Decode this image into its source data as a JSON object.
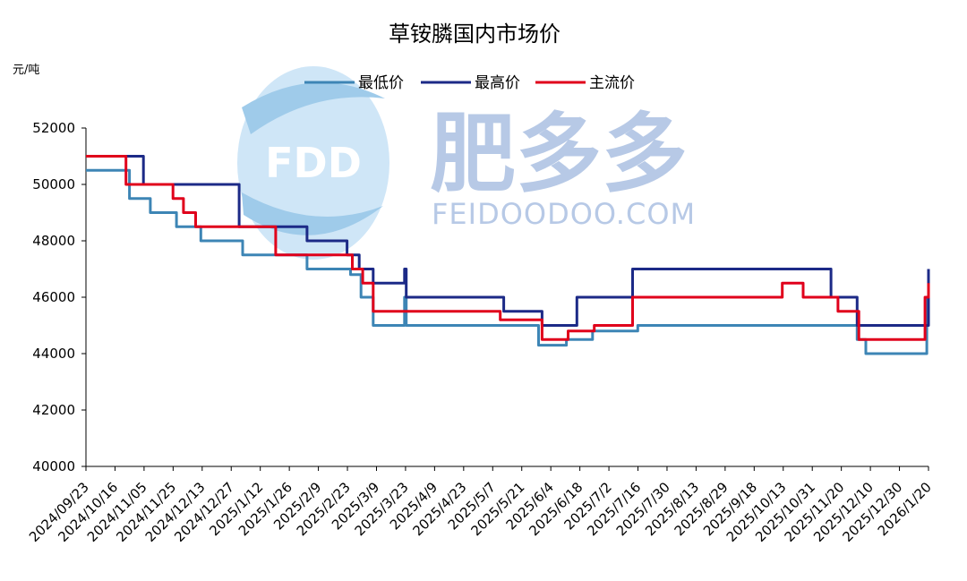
{
  "chart_data": {
    "type": "line",
    "title": "草铵膦国内市场价",
    "unit_label": "元/吨",
    "ylim": [
      40000,
      52000
    ],
    "yticks": [
      40000,
      42000,
      44000,
      46000,
      48000,
      50000,
      52000
    ],
    "x_range": [
      "2024-09-23",
      "2026-01-20"
    ],
    "xtick_labels": [
      "2024/09/23",
      "2024/10/16",
      "2024/11/05",
      "2024/11/25",
      "2024/12/13",
      "2024/12/27",
      "2025/1/12",
      "2025/1/26",
      "2025/2/9",
      "2025/2/23",
      "2025/3/9",
      "2025/3/23",
      "2025/4/9",
      "2025/4/23",
      "2025/5/7",
      "2025/5/21",
      "2025/6/4",
      "2025/6/18",
      "2025/7/2",
      "2025/7/16",
      "2025/7/30",
      "2025/8/13",
      "2025/8/29",
      "2025/9/18",
      "2025/10/13",
      "2025/10/31",
      "2025/11/20",
      "2025/12/10",
      "2025/12/30",
      "2026/1/20"
    ],
    "legend_position": "top",
    "grid": false,
    "series": [
      {
        "name": "最低价",
        "color": "#3d85b5",
        "points": [
          [
            "2024-09-23",
            50500
          ],
          [
            "2024-10-18",
            49500
          ],
          [
            "2024-10-30",
            49000
          ],
          [
            "2024-11-14",
            48500
          ],
          [
            "2024-11-28",
            48000
          ],
          [
            "2024-12-22",
            47500
          ],
          [
            "2025-01-16",
            47500
          ],
          [
            "2025-01-28",
            47000
          ],
          [
            "2025-02-22",
            46800
          ],
          [
            "2025-02-28",
            46000
          ],
          [
            "2025-03-07",
            45000
          ],
          [
            "2025-03-24",
            45000
          ],
          [
            "2025-03-25",
            46000
          ],
          [
            "2025-03-26",
            45000
          ],
          [
            "2025-06-10",
            44300
          ],
          [
            "2025-06-26",
            44500
          ],
          [
            "2025-07-11",
            44800
          ],
          [
            "2025-08-06",
            45000
          ],
          [
            "2025-12-10",
            44500
          ],
          [
            "2025-12-15",
            44000
          ],
          [
            "2026-01-18",
            44000
          ],
          [
            "2026-01-19",
            46000
          ],
          [
            "2026-01-20",
            46500
          ]
        ]
      },
      {
        "name": "最高价",
        "color": "#1c2a87",
        "points": [
          [
            "2024-09-23",
            51000
          ],
          [
            "2024-10-25",
            51000
          ],
          [
            "2024-10-26",
            50000
          ],
          [
            "2024-12-19",
            50000
          ],
          [
            "2024-12-20",
            48500
          ],
          [
            "2025-01-27",
            48500
          ],
          [
            "2025-01-28",
            48000
          ],
          [
            "2025-02-19",
            48000
          ],
          [
            "2025-02-20",
            47500
          ],
          [
            "2025-02-26",
            47500
          ],
          [
            "2025-02-27",
            47000
          ],
          [
            "2025-03-06",
            47000
          ],
          [
            "2025-03-07",
            46500
          ],
          [
            "2025-03-24",
            46500
          ],
          [
            "2025-03-25",
            47000
          ],
          [
            "2025-03-26",
            46000
          ],
          [
            "2025-05-20",
            46000
          ],
          [
            "2025-05-21",
            45500
          ],
          [
            "2025-06-11",
            45500
          ],
          [
            "2025-06-12",
            45000
          ],
          [
            "2025-07-01",
            45000
          ],
          [
            "2025-07-02",
            46000
          ],
          [
            "2025-08-02",
            46000
          ],
          [
            "2025-08-03",
            47000
          ],
          [
            "2025-11-24",
            47000
          ],
          [
            "2025-11-25",
            46000
          ],
          [
            "2025-12-09",
            46000
          ],
          [
            "2025-12-10",
            45000
          ],
          [
            "2026-01-18",
            45000
          ],
          [
            "2026-01-20",
            47000
          ]
        ]
      },
      {
        "name": "主流价",
        "color": "#e0001b",
        "points": [
          [
            "2024-09-23",
            51000
          ],
          [
            "2024-10-15",
            51000
          ],
          [
            "2024-10-16",
            50000
          ],
          [
            "2024-11-11",
            50000
          ],
          [
            "2024-11-12",
            49500
          ],
          [
            "2024-11-18",
            49000
          ],
          [
            "2024-11-25",
            48500
          ],
          [
            "2025-01-09",
            48500
          ],
          [
            "2025-01-10",
            47500
          ],
          [
            "2025-02-22",
            47500
          ],
          [
            "2025-02-23",
            47000
          ],
          [
            "2025-03-01",
            46500
          ],
          [
            "2025-03-07",
            45500
          ],
          [
            "2025-05-18",
            45500
          ],
          [
            "2025-05-19",
            45200
          ],
          [
            "2025-06-11",
            45200
          ],
          [
            "2025-06-12",
            44500
          ],
          [
            "2025-06-26",
            44500
          ],
          [
            "2025-06-27",
            44800
          ],
          [
            "2025-07-11",
            44800
          ],
          [
            "2025-07-12",
            45000
          ],
          [
            "2025-08-02",
            45000
          ],
          [
            "2025-08-03",
            46000
          ],
          [
            "2025-10-27",
            46000
          ],
          [
            "2025-10-28",
            46500
          ],
          [
            "2025-11-08",
            46500
          ],
          [
            "2025-11-09",
            46000
          ],
          [
            "2025-11-28",
            46000
          ],
          [
            "2025-11-29",
            45500
          ],
          [
            "2025-12-10",
            45500
          ],
          [
            "2025-12-11",
            44500
          ],
          [
            "2026-01-17",
            44500
          ],
          [
            "2026-01-18",
            46000
          ],
          [
            "2026-01-19",
            46000
          ],
          [
            "2026-01-20",
            46500
          ]
        ]
      }
    ]
  },
  "watermark": {
    "logo_text": "FDD",
    "brand_cn": "肥多多",
    "brand_en": "FEIDOODOO.COM"
  }
}
